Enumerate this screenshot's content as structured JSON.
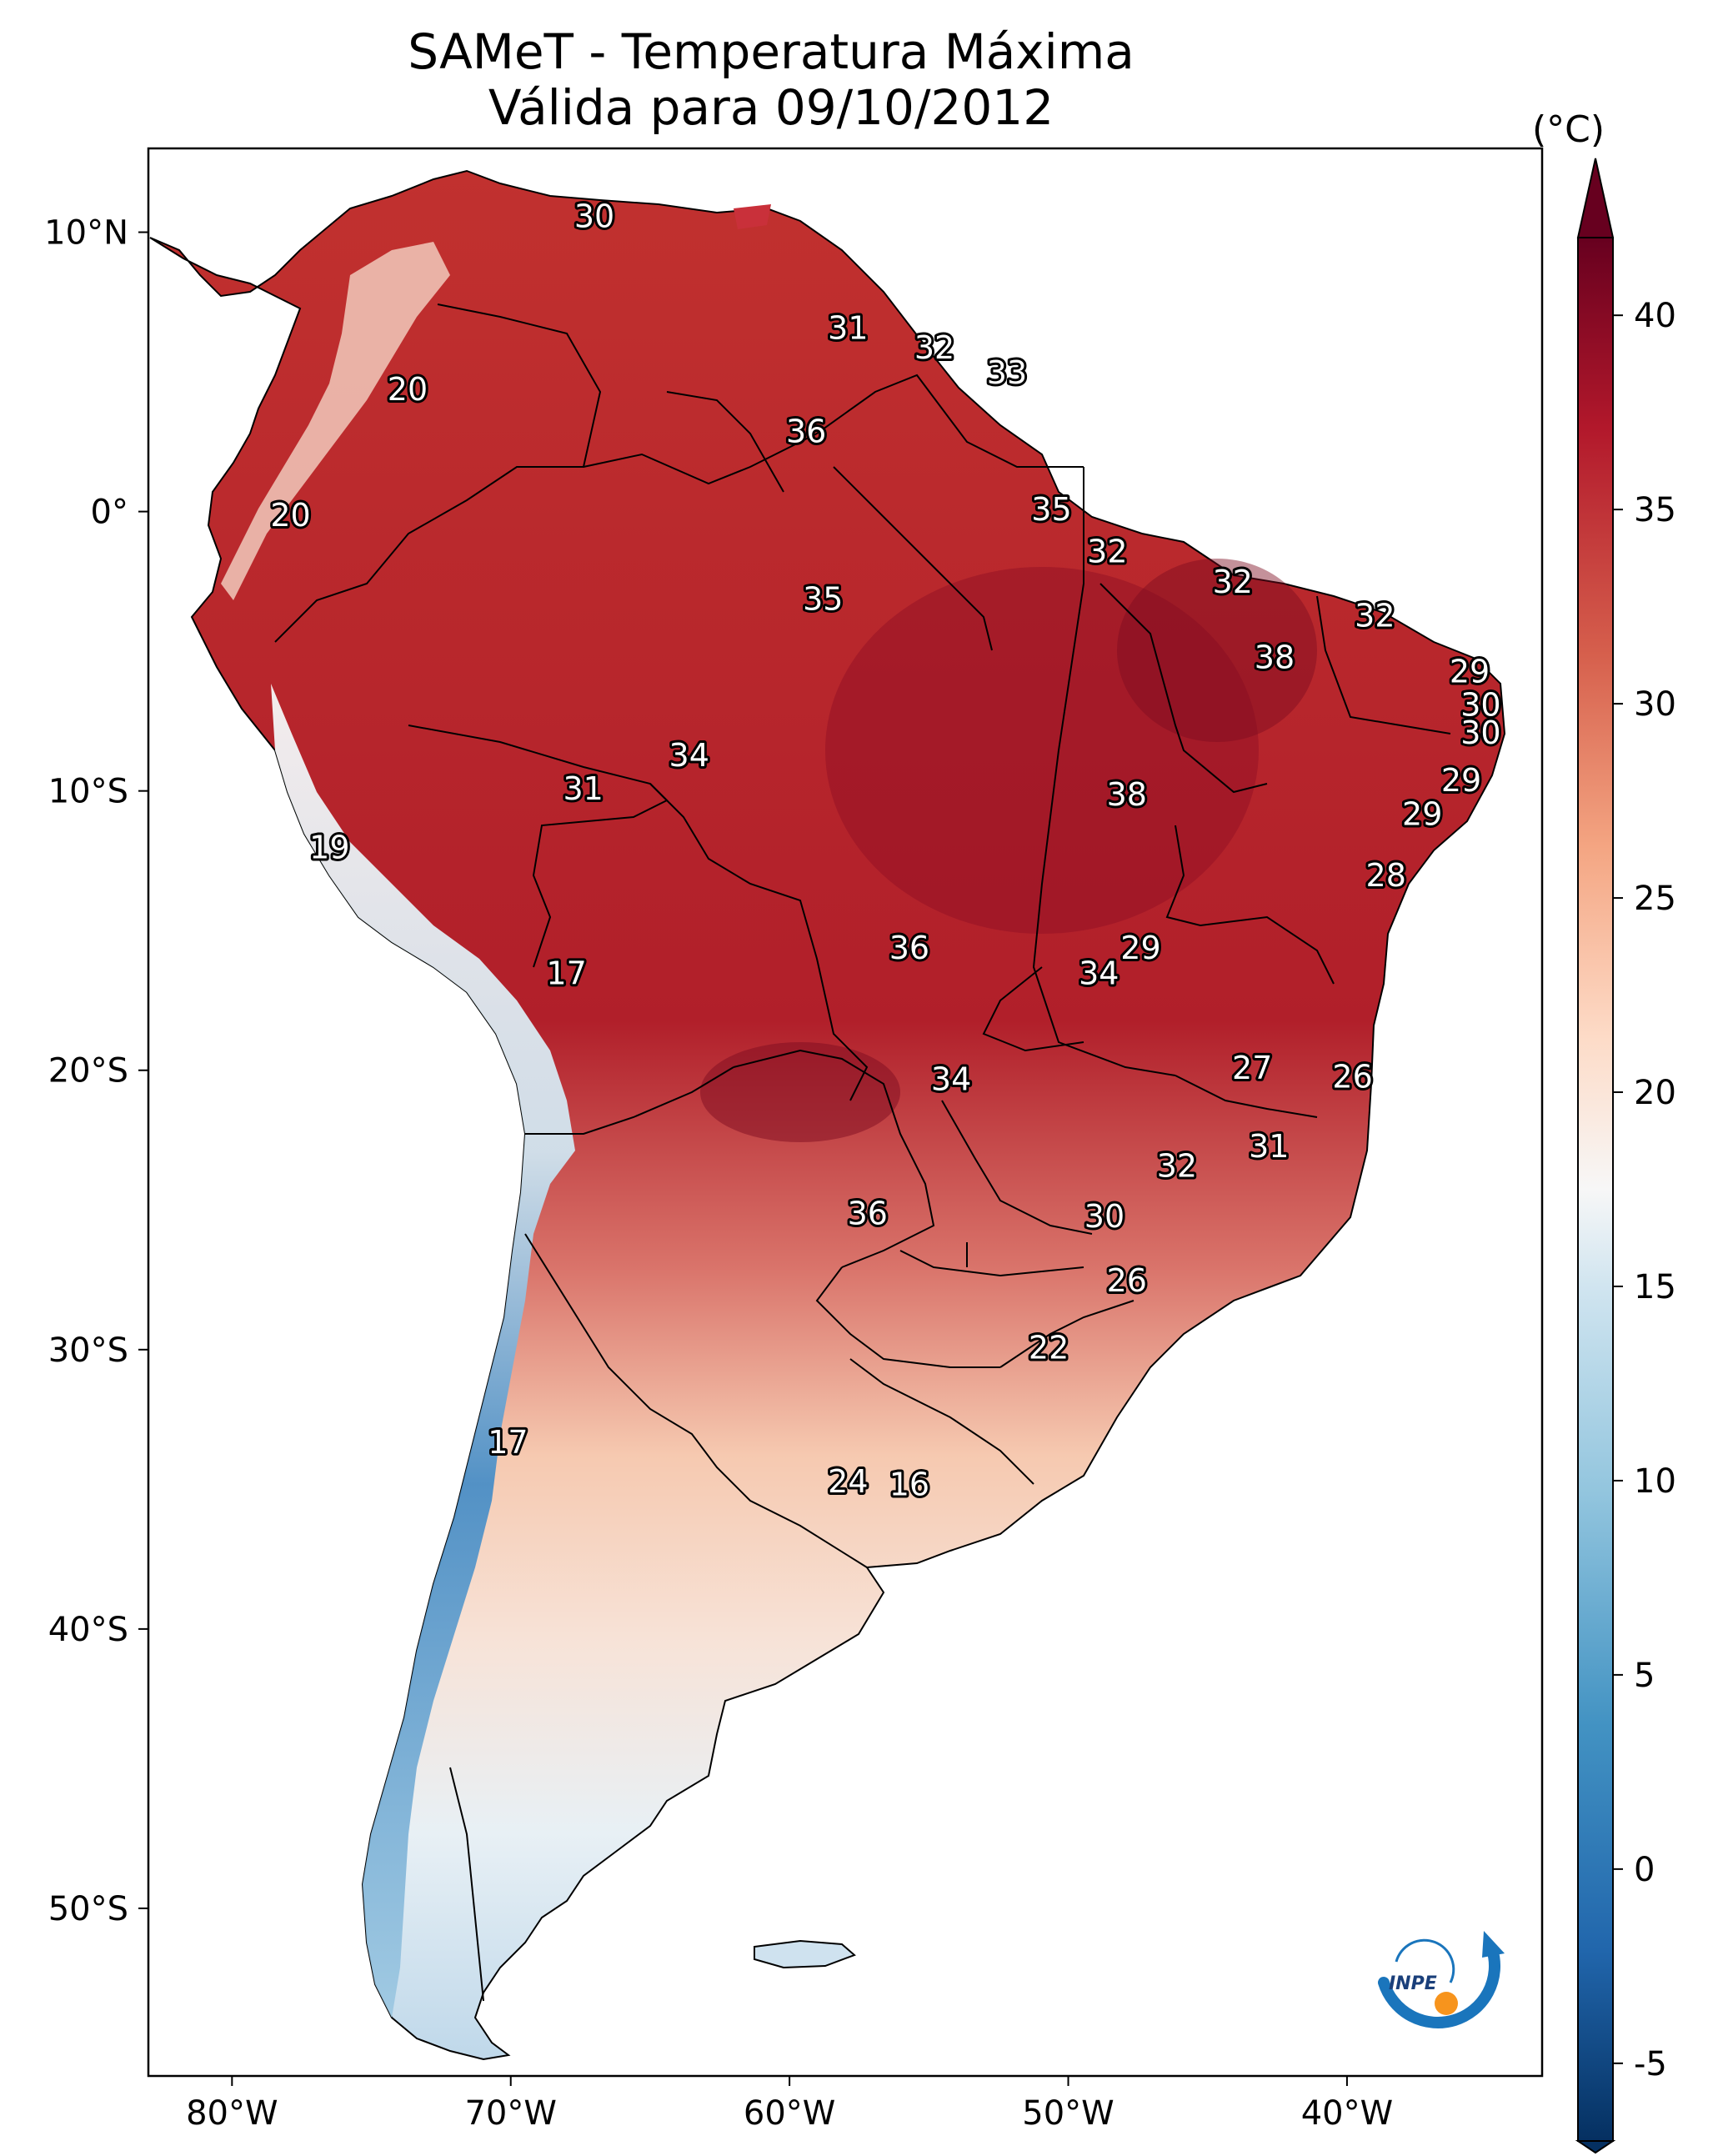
{
  "title": {
    "line1": "SAMeT - Temperatura Máxima",
    "line2": "Válida para 09/10/2012"
  },
  "map": {
    "region": "South America",
    "lon_ticks": [
      "80°W",
      "70°W",
      "60°W",
      "50°W",
      "40°W"
    ],
    "lat_ticks": [
      "10°N",
      "0°",
      "10°S",
      "20°S",
      "30°S",
      "40°S",
      "50°S"
    ],
    "lon_range": [
      -83,
      -33
    ],
    "lat_range": [
      -56,
      13
    ]
  },
  "colorbar": {
    "unit": "(°C)",
    "ticks": [
      "40",
      "35",
      "30",
      "25",
      "20",
      "15",
      "10",
      "5",
      "0",
      "-5"
    ],
    "min": -7,
    "max": 42,
    "colormap": "RdBu_r",
    "extend": "both"
  },
  "station_labels": [
    {
      "text": "30",
      "lon": -67.0,
      "lat": 10.5
    },
    {
      "text": "31",
      "lon": -57.9,
      "lat": 6.5
    },
    {
      "text": "32",
      "lon": -54.8,
      "lat": 5.8
    },
    {
      "text": "33",
      "lon": -52.2,
      "lat": 4.9
    },
    {
      "text": "20",
      "lon": -73.7,
      "lat": 4.3
    },
    {
      "text": "36",
      "lon": -59.4,
      "lat": 2.8
    },
    {
      "text": "20",
      "lon": -77.9,
      "lat": -0.2
    },
    {
      "text": "35",
      "lon": -50.6,
      "lat": 0.0
    },
    {
      "text": "32",
      "lon": -48.6,
      "lat": -1.5
    },
    {
      "text": "32",
      "lon": -44.1,
      "lat": -2.6
    },
    {
      "text": "35",
      "lon": -58.8,
      "lat": -3.2
    },
    {
      "text": "32",
      "lon": -39.0,
      "lat": -3.8
    },
    {
      "text": "38",
      "lon": -42.6,
      "lat": -5.3
    },
    {
      "text": "29",
      "lon": -35.6,
      "lat": -5.8
    },
    {
      "text": "30",
      "lon": -35.2,
      "lat": -7.0
    },
    {
      "text": "30",
      "lon": -35.2,
      "lat": -8.0
    },
    {
      "text": "34",
      "lon": -63.6,
      "lat": -8.8
    },
    {
      "text": "29",
      "lon": -35.9,
      "lat": -9.7
    },
    {
      "text": "31",
      "lon": -67.4,
      "lat": -10.0
    },
    {
      "text": "38",
      "lon": -47.9,
      "lat": -10.2
    },
    {
      "text": "29",
      "lon": -37.3,
      "lat": -10.9
    },
    {
      "text": "19",
      "lon": -76.5,
      "lat": -12.1
    },
    {
      "text": "28",
      "lon": -38.6,
      "lat": -13.1
    },
    {
      "text": "29",
      "lon": -47.4,
      "lat": -15.7
    },
    {
      "text": "36",
      "lon": -55.7,
      "lat": -15.7
    },
    {
      "text": "17",
      "lon": -68.0,
      "lat": -16.6
    },
    {
      "text": "34",
      "lon": -48.9,
      "lat": -16.6
    },
    {
      "text": "27",
      "lon": -43.4,
      "lat": -20.0
    },
    {
      "text": "26",
      "lon": -39.8,
      "lat": -20.3
    },
    {
      "text": "34",
      "lon": -54.2,
      "lat": -20.4
    },
    {
      "text": "31",
      "lon": -42.8,
      "lat": -22.8
    },
    {
      "text": "32",
      "lon": -46.1,
      "lat": -23.5
    },
    {
      "text": "36",
      "lon": -57.2,
      "lat": -25.2
    },
    {
      "text": "30",
      "lon": -48.7,
      "lat": -25.3
    },
    {
      "text": "26",
      "lon": -47.9,
      "lat": -27.6
    },
    {
      "text": "22",
      "lon": -50.7,
      "lat": -30.0
    },
    {
      "text": "17",
      "lon": -70.1,
      "lat": -33.4
    },
    {
      "text": "24",
      "lon": -57.9,
      "lat": -34.8
    },
    {
      "text": "16",
      "lon": -55.7,
      "lat": -34.9
    }
  ],
  "logo": {
    "text": "INPE",
    "colors": {
      "arc": "#1a75bc",
      "dot": "#f7941d"
    }
  }
}
